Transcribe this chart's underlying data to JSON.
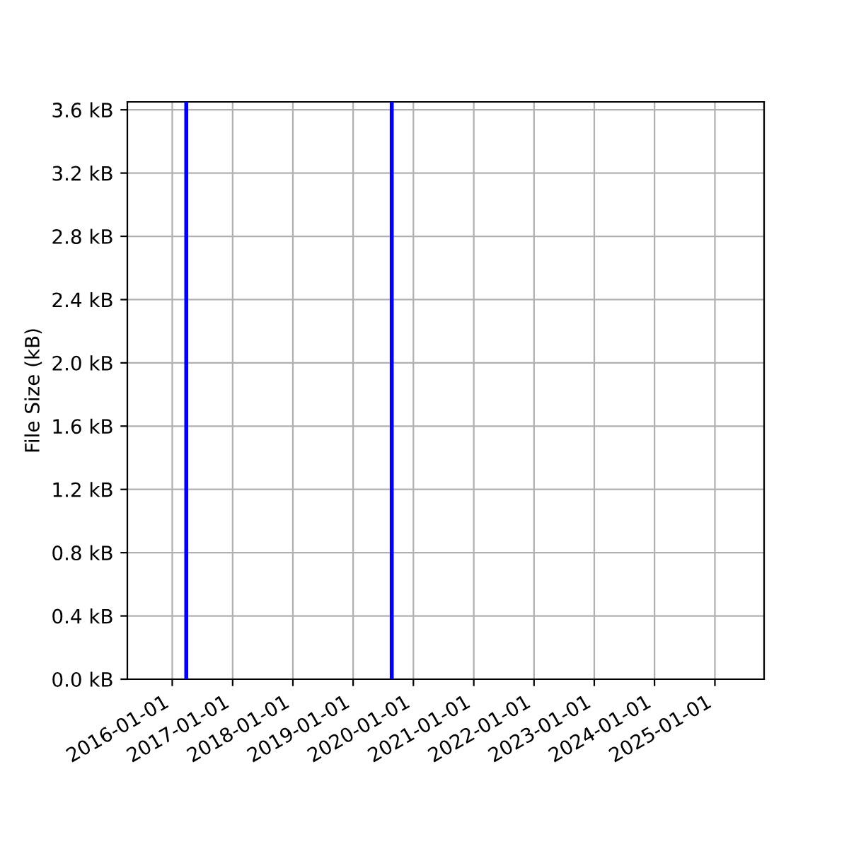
{
  "chart_data": {
    "type": "line",
    "ylabel": "File Size (kB)",
    "series": [
      {
        "color": "#0000ff",
        "x": [
          "2016-03-26",
          "2016-03-26"
        ],
        "values": [
          0,
          3.65
        ]
      },
      {
        "color": "#0000ff",
        "x": [
          "2019-08-23",
          "2019-08-23"
        ],
        "values": [
          0,
          3.65
        ]
      }
    ],
    "xlim": [
      "2015-04-04",
      "2025-10-26"
    ],
    "xticks": [
      "2016-01-01",
      "2017-01-01",
      "2018-01-01",
      "2019-01-01",
      "2020-01-01",
      "2021-01-01",
      "2022-01-01",
      "2023-01-01",
      "2024-01-01",
      "2025-01-01"
    ],
    "ylim": [
      0,
      3.65
    ],
    "yticks": [
      {
        "value": 0,
        "label": "0.0 kB"
      },
      {
        "value": 0.4,
        "label": "0.4 kB"
      },
      {
        "value": 0.8,
        "label": "0.8 kB"
      },
      {
        "value": 1.2,
        "label": "1.2 kB"
      },
      {
        "value": 1.6,
        "label": "1.6 kB"
      },
      {
        "value": 2.0,
        "label": "2.0 kB"
      },
      {
        "value": 2.4,
        "label": "2.4 kB"
      },
      {
        "value": 2.8,
        "label": "2.8 kB"
      },
      {
        "value": 3.2,
        "label": "3.2 kB"
      },
      {
        "value": 3.6,
        "label": "3.6 kB"
      }
    ],
    "grid": true
  }
}
